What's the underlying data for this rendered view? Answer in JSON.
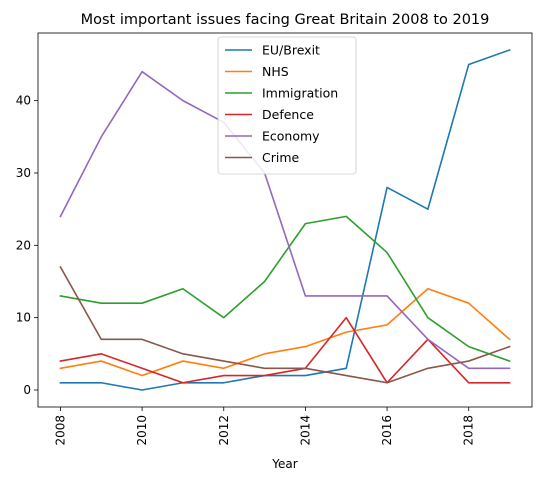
{
  "chart_data": {
    "type": "line",
    "title": "Most important issues facing Great Britain 2008 to 2019",
    "xlabel": "Year",
    "ylabel": "",
    "x": [
      2008,
      2009,
      2010,
      2011,
      2012,
      2013,
      2014,
      2015,
      2016,
      2017,
      2018,
      2019
    ],
    "xticks": [
      2008,
      2010,
      2012,
      2014,
      2016,
      2018
    ],
    "yticks": [
      0,
      10,
      20,
      30,
      40
    ],
    "xlim": [
      2007.45,
      2019.55
    ],
    "ylim": [
      -2.35,
      49.35
    ],
    "grid": false,
    "legend_position": "upper-center",
    "series": [
      {
        "name": "EU/Brexit",
        "color": "#1f77b4",
        "values": [
          1,
          1,
          0,
          1,
          1,
          2,
          2,
          3,
          28,
          25,
          45,
          47
        ]
      },
      {
        "name": "NHS",
        "color": "#ff7f0e",
        "values": [
          3,
          4,
          2,
          4,
          3,
          5,
          6,
          8,
          9,
          14,
          12,
          7
        ]
      },
      {
        "name": "Immigration",
        "color": "#2ca02c",
        "values": [
          13,
          12,
          12,
          14,
          10,
          15,
          23,
          24,
          19,
          10,
          6,
          4
        ]
      },
      {
        "name": "Defence",
        "color": "#d62728",
        "values": [
          4,
          5,
          3,
          1,
          2,
          2,
          3,
          10,
          1,
          7,
          1,
          1
        ]
      },
      {
        "name": "Economy",
        "color": "#9467bd",
        "values": [
          24,
          35,
          44,
          40,
          37,
          30,
          13,
          13,
          13,
          7,
          3,
          3
        ]
      },
      {
        "name": "Crime",
        "color": "#8c564b",
        "values": [
          17,
          7,
          7,
          5,
          4,
          3,
          3,
          2,
          1,
          3,
          4,
          6
        ]
      }
    ]
  }
}
